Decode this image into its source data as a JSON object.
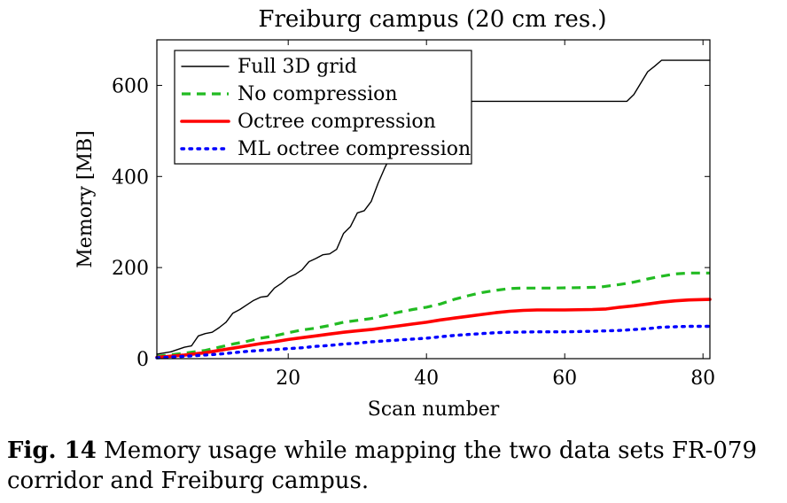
{
  "chart_data": {
    "type": "line",
    "title": "Freiburg campus (20 cm res.)",
    "xlabel": "Scan number",
    "ylabel": "Memory [MB]",
    "xlim": [
      1,
      81
    ],
    "ylim": [
      0,
      700
    ],
    "xticks": [
      20,
      40,
      60,
      80
    ],
    "yticks": [
      0,
      200,
      400,
      600
    ],
    "grid": false,
    "legend_position": "top-left",
    "series": [
      {
        "name": "Full 3D grid",
        "color": "#000000",
        "style": "solid-thin",
        "points": [
          [
            1,
            10
          ],
          [
            3,
            15
          ],
          [
            5,
            25
          ],
          [
            6,
            28
          ],
          [
            7,
            50
          ],
          [
            8,
            55
          ],
          [
            9,
            58
          ],
          [
            10,
            68
          ],
          [
            11,
            80
          ],
          [
            12,
            100
          ],
          [
            13,
            108
          ],
          [
            14,
            118
          ],
          [
            15,
            128
          ],
          [
            16,
            135
          ],
          [
            17,
            137
          ],
          [
            18,
            155
          ],
          [
            19,
            165
          ],
          [
            20,
            178
          ],
          [
            21,
            185
          ],
          [
            22,
            195
          ],
          [
            23,
            213
          ],
          [
            24,
            220
          ],
          [
            25,
            228
          ],
          [
            26,
            230
          ],
          [
            27,
            240
          ],
          [
            28,
            275
          ],
          [
            29,
            290
          ],
          [
            30,
            320
          ],
          [
            31,
            325
          ],
          [
            32,
            345
          ],
          [
            33,
            385
          ],
          [
            34,
            420
          ],
          [
            35,
            450
          ],
          [
            36,
            470
          ],
          [
            38,
            510
          ],
          [
            40,
            545
          ],
          [
            43,
            565
          ],
          [
            50,
            565
          ],
          [
            60,
            565
          ],
          [
            69,
            565
          ],
          [
            70,
            580
          ],
          [
            71,
            605
          ],
          [
            72,
            630
          ],
          [
            73,
            642
          ],
          [
            74,
            655
          ],
          [
            75,
            655
          ],
          [
            81,
            655
          ]
        ]
      },
      {
        "name": "No compression",
        "color": "#22bb22",
        "style": "dashed",
        "points": [
          [
            1,
            5
          ],
          [
            5,
            12
          ],
          [
            8,
            18
          ],
          [
            10,
            25
          ],
          [
            12,
            32
          ],
          [
            14,
            38
          ],
          [
            16,
            45
          ],
          [
            18,
            50
          ],
          [
            20,
            57
          ],
          [
            22,
            63
          ],
          [
            24,
            67
          ],
          [
            26,
            73
          ],
          [
            28,
            80
          ],
          [
            30,
            84
          ],
          [
            32,
            88
          ],
          [
            34,
            95
          ],
          [
            36,
            102
          ],
          [
            38,
            108
          ],
          [
            40,
            113
          ],
          [
            42,
            120
          ],
          [
            44,
            130
          ],
          [
            46,
            138
          ],
          [
            48,
            145
          ],
          [
            50,
            150
          ],
          [
            52,
            154
          ],
          [
            54,
            155
          ],
          [
            58,
            155
          ],
          [
            62,
            156
          ],
          [
            65,
            157
          ],
          [
            68,
            163
          ],
          [
            70,
            168
          ],
          [
            72,
            175
          ],
          [
            74,
            181
          ],
          [
            76,
            186
          ],
          [
            78,
            188
          ],
          [
            81,
            188
          ]
        ]
      },
      {
        "name": "Octree compression",
        "color": "#ff0000",
        "style": "solid-thick",
        "points": [
          [
            1,
            3
          ],
          [
            5,
            8
          ],
          [
            8,
            13
          ],
          [
            10,
            18
          ],
          [
            12,
            23
          ],
          [
            14,
            28
          ],
          [
            16,
            33
          ],
          [
            18,
            37
          ],
          [
            20,
            42
          ],
          [
            22,
            46
          ],
          [
            24,
            50
          ],
          [
            26,
            54
          ],
          [
            28,
            58
          ],
          [
            30,
            61
          ],
          [
            32,
            64
          ],
          [
            34,
            68
          ],
          [
            36,
            72
          ],
          [
            38,
            76
          ],
          [
            40,
            80
          ],
          [
            42,
            85
          ],
          [
            44,
            89
          ],
          [
            46,
            93
          ],
          [
            48,
            97
          ],
          [
            50,
            101
          ],
          [
            52,
            104
          ],
          [
            54,
            106
          ],
          [
            56,
            107
          ],
          [
            60,
            107
          ],
          [
            64,
            108
          ],
          [
            66,
            109
          ],
          [
            68,
            113
          ],
          [
            70,
            116
          ],
          [
            72,
            120
          ],
          [
            74,
            124
          ],
          [
            76,
            127
          ],
          [
            78,
            129
          ],
          [
            81,
            130
          ]
        ]
      },
      {
        "name": "ML octree compression",
        "color": "#0000ff",
        "style": "dotted",
        "points": [
          [
            1,
            2
          ],
          [
            5,
            5
          ],
          [
            8,
            8
          ],
          [
            10,
            10
          ],
          [
            12,
            13
          ],
          [
            14,
            16
          ],
          [
            16,
            18
          ],
          [
            18,
            20
          ],
          [
            20,
            22
          ],
          [
            22,
            24
          ],
          [
            24,
            27
          ],
          [
            26,
            29
          ],
          [
            28,
            32
          ],
          [
            30,
            34
          ],
          [
            32,
            37
          ],
          [
            34,
            39
          ],
          [
            36,
            41
          ],
          [
            38,
            43
          ],
          [
            40,
            45
          ],
          [
            42,
            48
          ],
          [
            44,
            51
          ],
          [
            46,
            53
          ],
          [
            48,
            55
          ],
          [
            50,
            57
          ],
          [
            52,
            58
          ],
          [
            56,
            59
          ],
          [
            60,
            59
          ],
          [
            64,
            60
          ],
          [
            66,
            61
          ],
          [
            68,
            62
          ],
          [
            70,
            64
          ],
          [
            72,
            66
          ],
          [
            74,
            69
          ],
          [
            76,
            70
          ],
          [
            78,
            71
          ],
          [
            81,
            71
          ]
        ]
      }
    ]
  },
  "caption": {
    "label": "Fig. 14",
    "text": " Memory usage while mapping the two data sets FR-079 corridor and Freiburg campus."
  }
}
